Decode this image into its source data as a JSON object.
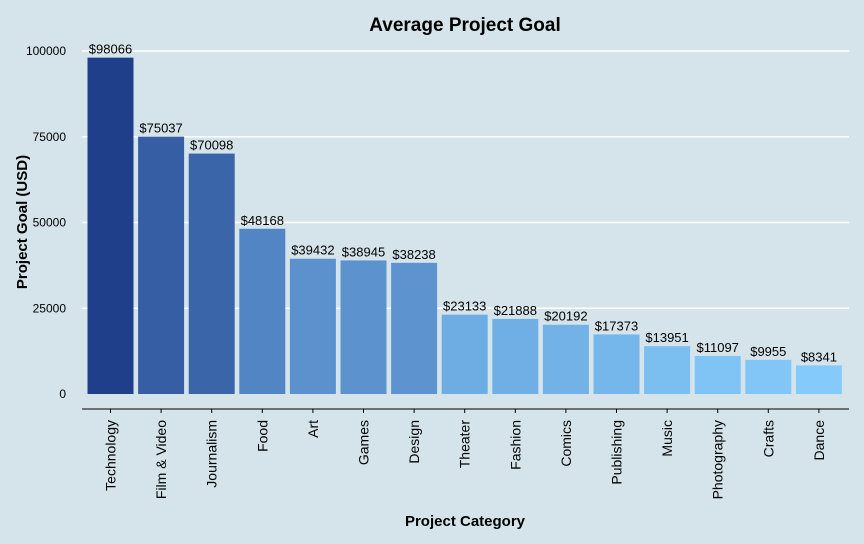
{
  "chart_data": {
    "type": "bar",
    "title": "Average Project Goal",
    "xlabel": "Project Category",
    "ylabel": "Project Goal (USD)",
    "categories": [
      "Technology",
      "Film & Video",
      "Journalism",
      "Food",
      "Art",
      "Games",
      "Design",
      "Theater",
      "Fashion",
      "Comics",
      "Publishing",
      "Music",
      "Photography",
      "Crafts",
      "Dance"
    ],
    "values": [
      98066,
      75037,
      70098,
      48168,
      39432,
      38945,
      38238,
      23133,
      21888,
      20192,
      17373,
      13951,
      11097,
      9955,
      8341
    ],
    "value_labels": [
      "$98066",
      "$75037",
      "$70098",
      "$48168",
      "$39432",
      "$38945",
      "$38238",
      "$23133",
      "$21888",
      "$20192",
      "$17373",
      "$13951",
      "$11097",
      "$9955",
      "$8341"
    ],
    "yticks": [
      0,
      25000,
      50000,
      75000,
      100000
    ],
    "ytick_labels": [
      "0",
      "25000",
      "50000",
      "75000",
      "100000"
    ],
    "ylim": [
      0,
      100000
    ],
    "grid": true,
    "legend": "none",
    "colors": {
      "background": "#d5e4eb",
      "gridline": "#ffffff",
      "bar_low": "#84cbfb",
      "bar_high": "#203f8b"
    }
  }
}
